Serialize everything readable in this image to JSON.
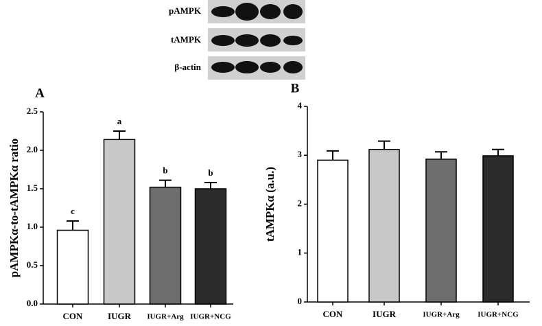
{
  "blot": {
    "labels": [
      "pAMPK",
      "tAMPK",
      "β-actin"
    ]
  },
  "chart_data": [
    {
      "type": "bar",
      "panel": "A",
      "y_label": "pAMPKα-to-tAMPKα ratio",
      "categories": [
        "CON",
        "IUGR",
        "IUGR+Arg",
        "IUGR+NCG"
      ],
      "values": [
        0.96,
        2.14,
        1.52,
        1.5
      ],
      "errors": [
        0.12,
        0.11,
        0.09,
        0.08
      ],
      "significance": [
        "c",
        "a",
        "b",
        "b"
      ],
      "colors": [
        "#ffffff",
        "#c8c8c8",
        "#6e6e6e",
        "#2b2b2b"
      ],
      "ylim": [
        0,
        2.5
      ],
      "yticks": [
        {
          "value": 0,
          "label": "0.0"
        },
        {
          "value": 0.5,
          "label": "0.5"
        },
        {
          "value": 1,
          "label": "1.0"
        },
        {
          "value": 1.5,
          "label": "1.5"
        },
        {
          "value": 2,
          "label": "2.0"
        },
        {
          "value": 2.5,
          "label": "2.5"
        }
      ]
    },
    {
      "type": "bar",
      "panel": "B",
      "y_label": "tAMPKα (a.u.)",
      "categories": [
        "CON",
        "IUGR",
        "IUGR+Arg",
        "IUGR+NCG"
      ],
      "values": [
        2.9,
        3.12,
        2.92,
        2.99
      ],
      "errors": [
        0.19,
        0.17,
        0.15,
        0.13
      ],
      "colors": [
        "#ffffff",
        "#c8c8c8",
        "#6e6e6e",
        "#2b2b2b"
      ],
      "ylim": [
        0,
        4
      ],
      "yticks": [
        0,
        1,
        2,
        3,
        4
      ]
    }
  ]
}
